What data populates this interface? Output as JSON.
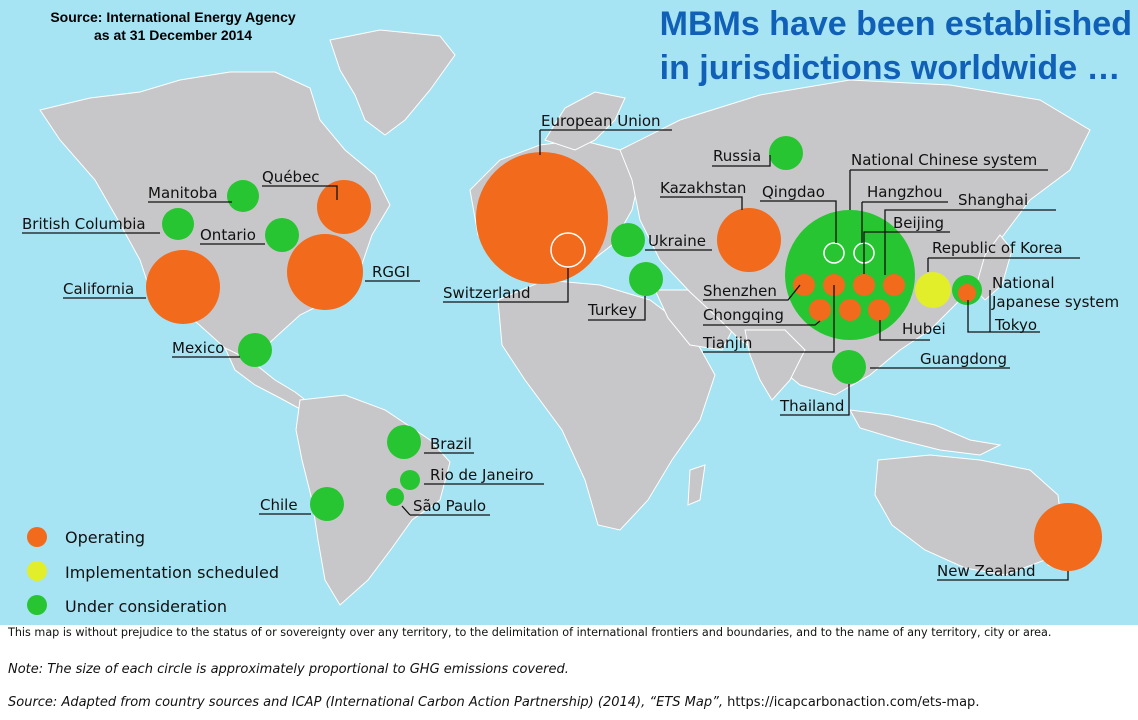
{
  "source_note": {
    "line1": "Source: International Energy Agency",
    "line2": "as at 31 December 2014"
  },
  "headline": {
    "line1": "MBMs have been established",
    "line2": "in jurisdictions worldwide …"
  },
  "colors": {
    "ocean": "#a6e3f3",
    "land": "#c7c7c9",
    "operating": "#f26a1b",
    "implementation_scheduled": "#e3ee2a",
    "under_consideration": "#27c531",
    "headline": "#1160b8"
  },
  "legend": [
    {
      "status": "operating",
      "label": "Operating"
    },
    {
      "status": "implementation_scheduled",
      "label": "Implementation scheduled"
    },
    {
      "status": "under_consideration",
      "label": "Under consideration"
    }
  ],
  "jurisdictions": [
    {
      "name": "European Union",
      "status": "operating"
    },
    {
      "name": "Switzerland",
      "status": "operating"
    },
    {
      "name": "Russia",
      "status": "under_consideration"
    },
    {
      "name": "Ukraine",
      "status": "under_consideration"
    },
    {
      "name": "Turkey",
      "status": "under_consideration"
    },
    {
      "name": "Kazakhstan",
      "status": "operating"
    },
    {
      "name": "National Chinese system",
      "status": "under_consideration"
    },
    {
      "name": "Qingdao",
      "status": "under_consideration"
    },
    {
      "name": "Hangzhou",
      "status": "under_consideration"
    },
    {
      "name": "Shanghai",
      "status": "operating"
    },
    {
      "name": "Beijing",
      "status": "operating"
    },
    {
      "name": "Republic of Korea",
      "status": "implementation_scheduled"
    },
    {
      "name": "National",
      "status": "under_consideration"
    },
    {
      "name": "Japanese system",
      "status": "under_consideration"
    },
    {
      "name": "Tokyo",
      "status": "operating"
    },
    {
      "name": "Shenzhen",
      "status": "operating"
    },
    {
      "name": "Chongqing",
      "status": "operating"
    },
    {
      "name": "Hubei",
      "status": "operating"
    },
    {
      "name": "Tianjin",
      "status": "operating"
    },
    {
      "name": "Guangdong",
      "status": "operating"
    },
    {
      "name": "Thailand",
      "status": "under_consideration"
    },
    {
      "name": "Manitoba",
      "status": "under_consideration"
    },
    {
      "name": "Québec",
      "status": "operating"
    },
    {
      "name": "British Columbia",
      "status": "under_consideration"
    },
    {
      "name": "Ontario",
      "status": "under_consideration"
    },
    {
      "name": "RGGI",
      "status": "operating"
    },
    {
      "name": "California",
      "status": "operating"
    },
    {
      "name": "Mexico",
      "status": "under_consideration"
    },
    {
      "name": "Brazil",
      "status": "under_consideration"
    },
    {
      "name": "Rio de Janeiro",
      "status": "under_consideration"
    },
    {
      "name": "São Paulo",
      "status": "under_consideration"
    },
    {
      "name": "Chile",
      "status": "under_consideration"
    },
    {
      "name": "New Zealand",
      "status": "operating"
    }
  ],
  "footer": {
    "disclaimer": "This map is without prejudice to the status of or sovereignty over any territory, to the delimitation of international frontiers and boundaries, and to the name of any territory, city or area.",
    "note": "Note: The size of each circle is approximately proportional to GHG emissions covered.",
    "source_italic": "Source: Adapted from country sources and ICAP (International Carbon Action Partnership) (2014), “ETS Map”,",
    "source_url": " https://icapcarbonaction.com/ets-map."
  }
}
